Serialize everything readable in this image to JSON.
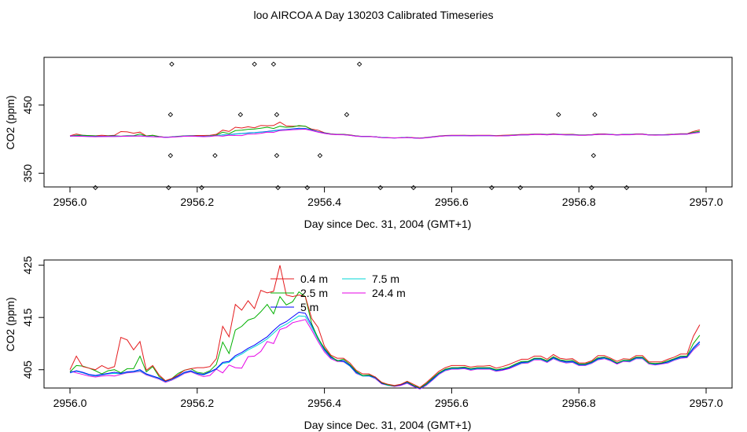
{
  "figure": {
    "title": "loo AIRCOA A  Day 130203  Calibrated Timeseries"
  },
  "chart_data": [
    {
      "type": "scatter+line",
      "xlabel": "Day since Dec. 31, 2004 (GMT+1)",
      "ylabel": "CO2 (ppm)",
      "xlim": [
        2956.0,
        2957.0
      ],
      "ylim": [
        330,
        520
      ],
      "xticks": [
        2956.0,
        2956.2,
        2956.4,
        2956.6,
        2956.8,
        2957.0
      ],
      "xtick_labels": [
        "2956.0",
        "2956.2",
        "2956.4",
        "2956.6",
        "2956.8",
        "2957.0"
      ],
      "yticks": [
        350,
        450
      ],
      "ytick_labels": [
        "350",
        "450"
      ],
      "grid": false,
      "raw_points": [
        {
          "x": 2956.16,
          "y": 510
        },
        {
          "x": 2956.29,
          "y": 510
        },
        {
          "x": 2956.32,
          "y": 510
        },
        {
          "x": 2956.455,
          "y": 510
        },
        {
          "x": 2956.158,
          "y": 436
        },
        {
          "x": 2956.268,
          "y": 436
        },
        {
          "x": 2956.325,
          "y": 436
        },
        {
          "x": 2956.435,
          "y": 436
        },
        {
          "x": 2956.768,
          "y": 436
        },
        {
          "x": 2956.825,
          "y": 436
        },
        {
          "x": 2956.158,
          "y": 376
        },
        {
          "x": 2956.228,
          "y": 376
        },
        {
          "x": 2956.325,
          "y": 376
        },
        {
          "x": 2956.393,
          "y": 376
        },
        {
          "x": 2956.823,
          "y": 376
        },
        {
          "x": 2956.04,
          "y": 329
        },
        {
          "x": 2956.155,
          "y": 329
        },
        {
          "x": 2956.207,
          "y": 329
        },
        {
          "x": 2956.327,
          "y": 329
        },
        {
          "x": 2956.373,
          "y": 329
        },
        {
          "x": 2956.488,
          "y": 329
        },
        {
          "x": 2956.54,
          "y": 329
        },
        {
          "x": 2956.663,
          "y": 329
        },
        {
          "x": 2956.708,
          "y": 329
        },
        {
          "x": 2956.82,
          "y": 329
        },
        {
          "x": 2956.875,
          "y": 329
        }
      ],
      "series": [
        {
          "name": "0.4 m",
          "color": "#e41a1c"
        },
        {
          "name": "2.5 m",
          "color": "#00b000"
        },
        {
          "name": "5 m",
          "color": "#0000ff"
        },
        {
          "name": "7.5 m",
          "color": "#00d7d7"
        },
        {
          "name": "24.4 m",
          "color": "#e600e6"
        }
      ]
    },
    {
      "type": "line",
      "xlabel": "Day since Dec. 31, 2004 (GMT+1)",
      "ylabel": "CO2 (ppm)",
      "xlim": [
        2956.0,
        2957.0
      ],
      "ylim": [
        401.5,
        426
      ],
      "xticks": [
        2956.0,
        2956.2,
        2956.4,
        2956.6,
        2956.8,
        2957.0
      ],
      "xtick_labels": [
        "2956.0",
        "2956.2",
        "2956.4",
        "2956.6",
        "2956.8",
        "2957.0"
      ],
      "yticks": [
        405,
        415,
        425
      ],
      "ytick_labels": [
        "405",
        "415",
        "425"
      ],
      "grid": false,
      "legend": {
        "placement": "top-left",
        "columns": 2
      },
      "x": [
        2956.0,
        2956.01,
        2956.02,
        2956.03,
        2956.04,
        2956.05,
        2956.06,
        2956.07,
        2956.08,
        2956.09,
        2956.1,
        2956.11,
        2956.12,
        2956.13,
        2956.14,
        2956.15,
        2956.16,
        2956.17,
        2956.18,
        2956.19,
        2956.2,
        2956.21,
        2956.22,
        2956.23,
        2956.24,
        2956.25,
        2956.26,
        2956.27,
        2956.28,
        2956.29,
        2956.3,
        2956.31,
        2956.32,
        2956.33,
        2956.34,
        2956.35,
        2956.36,
        2956.37,
        2956.38,
        2956.39,
        2956.4,
        2956.41,
        2956.42,
        2956.43,
        2956.44,
        2956.45,
        2956.46,
        2956.47,
        2956.48,
        2956.49,
        2956.5,
        2956.51,
        2956.52,
        2956.53,
        2956.54,
        2956.55,
        2956.56,
        2956.57,
        2956.58,
        2956.59,
        2956.6,
        2956.61,
        2956.62,
        2956.63,
        2956.64,
        2956.65,
        2956.66,
        2956.67,
        2956.68,
        2956.69,
        2956.7,
        2956.71,
        2956.72,
        2956.73,
        2956.74,
        2956.75,
        2956.76,
        2956.77,
        2956.78,
        2956.79,
        2956.8,
        2956.81,
        2956.82,
        2956.83,
        2956.84,
        2956.85,
        2956.86,
        2956.87,
        2956.88,
        2956.89,
        2956.9,
        2956.91,
        2956.92,
        2956.93,
        2956.94,
        2956.95,
        2956.96,
        2956.97,
        2956.98,
        2956.99
      ],
      "series": [
        {
          "name": "0.4 m",
          "color": "#e41a1c",
          "values": [
            405.0,
            407.6,
            405.6,
            405.3,
            405.0,
            405.8,
            405.2,
            405.6,
            411.2,
            410.7,
            408.8,
            410.4,
            404.9,
            405.8,
            404.0,
            402.9,
            403.3,
            404.0,
            404.9,
            405.2,
            405.4,
            405.4,
            405.6,
            407.1,
            413.3,
            411.3,
            417.5,
            416.4,
            418.2,
            416.7,
            420.2,
            419.7,
            420.0,
            425.0,
            419.3,
            419.0,
            419.3,
            419.0,
            414.8,
            413.1,
            409.5,
            407.8,
            407.2,
            407.2,
            406.3,
            404.9,
            404.2,
            404.2,
            403.6,
            402.6,
            402.2,
            402.0,
            402.2,
            402.8,
            402.2,
            401.6,
            402.5,
            403.6,
            404.7,
            405.4,
            405.8,
            405.8,
            405.8,
            405.5,
            405.7,
            405.7,
            405.8,
            405.3,
            405.6,
            406.0,
            406.5,
            407.0,
            407.0,
            407.6,
            407.6,
            407.0,
            407.9,
            407.2,
            407.0,
            407.1,
            406.3,
            406.3,
            406.7,
            407.7,
            407.7,
            407.2,
            406.6,
            407.1,
            407.0,
            407.7,
            407.7,
            406.5,
            406.5,
            406.5,
            407.0,
            407.4,
            408.0,
            408.0,
            411.4,
            413.6
          ]
        },
        {
          "name": "2.5 m",
          "color": "#00b000",
          "values": [
            404.6,
            405.8,
            405.7,
            405.3,
            404.8,
            404.2,
            404.8,
            405.0,
            404.4,
            405.2,
            405.2,
            407.6,
            404.6,
            405.6,
            403.7,
            402.9,
            403.3,
            404.3,
            404.9,
            405.2,
            404.5,
            404.3,
            404.8,
            406.0,
            410.3,
            408.1,
            412.6,
            413.3,
            414.5,
            414.9,
            416.1,
            417.5,
            415.7,
            419.0,
            417.4,
            418.0,
            419.9,
            419.0,
            413.8,
            411.0,
            409.1,
            407.6,
            406.7,
            407.0,
            406.0,
            404.7,
            403.9,
            404.0,
            403.6,
            402.5,
            402.1,
            401.9,
            402.2,
            402.7,
            402.0,
            401.5,
            402.3,
            403.4,
            404.4,
            405.1,
            405.4,
            405.4,
            405.5,
            405.2,
            405.4,
            405.4,
            405.4,
            405.0,
            405.2,
            405.5,
            406.1,
            406.6,
            406.6,
            407.2,
            407.2,
            406.7,
            407.5,
            406.9,
            406.7,
            406.8,
            406.1,
            406.1,
            406.5,
            407.3,
            407.4,
            407.0,
            406.3,
            406.8,
            406.8,
            407.4,
            407.4,
            406.3,
            406.2,
            406.3,
            406.7,
            407.1,
            407.6,
            407.6,
            410.0,
            411.6
          ]
        },
        {
          "name": "5 m",
          "color": "#0000ff",
          "values": [
            404.4,
            404.8,
            404.5,
            404.1,
            403.9,
            404.1,
            404.3,
            404.5,
            404.3,
            404.6,
            404.7,
            405.0,
            404.2,
            403.8,
            403.4,
            402.8,
            403.2,
            403.8,
            404.5,
            404.8,
            404.3,
            404.1,
            404.6,
            405.2,
            406.4,
            406.6,
            407.7,
            408.3,
            409.1,
            409.7,
            410.5,
            411.3,
            412.5,
            413.6,
            414.2,
            415.1,
            416.0,
            415.8,
            413.5,
            411.1,
            408.9,
            407.4,
            406.8,
            406.7,
            405.8,
            404.5,
            403.9,
            403.9,
            403.5,
            402.4,
            402.1,
            401.9,
            402.1,
            402.6,
            401.9,
            401.4,
            402.2,
            403.2,
            404.3,
            405.0,
            405.3,
            405.3,
            405.4,
            405.1,
            405.3,
            405.3,
            405.3,
            404.9,
            405.0,
            405.3,
            405.9,
            406.4,
            406.5,
            407.1,
            407.1,
            406.6,
            407.3,
            406.8,
            406.5,
            406.6,
            406.0,
            406.0,
            406.4,
            407.1,
            407.3,
            406.9,
            406.2,
            406.8,
            406.7,
            407.3,
            407.3,
            406.3,
            406.1,
            406.2,
            406.5,
            407.0,
            407.4,
            407.5,
            409.2,
            410.4
          ]
        },
        {
          "name": "7.5 m",
          "color": "#00d7d7",
          "values": [
            404.6,
            404.7,
            404.4,
            404.0,
            403.8,
            404.0,
            404.2,
            404.3,
            404.2,
            404.5,
            404.6,
            404.8,
            404.1,
            403.7,
            403.3,
            402.7,
            403.1,
            403.7,
            404.4,
            404.7,
            404.2,
            404.0,
            404.5,
            405.1,
            406.2,
            406.4,
            407.4,
            408.0,
            408.8,
            409.4,
            410.1,
            410.9,
            412.0,
            413.1,
            413.7,
            414.5,
            415.3,
            415.2,
            413.1,
            410.8,
            408.7,
            407.3,
            406.7,
            406.6,
            405.7,
            404.4,
            403.8,
            403.8,
            403.4,
            402.4,
            402.0,
            401.9,
            402.1,
            402.5,
            401.9,
            401.4,
            402.1,
            403.1,
            404.2,
            404.9,
            405.2,
            405.2,
            405.3,
            405.0,
            405.2,
            405.2,
            405.2,
            404.8,
            405.0,
            405.3,
            405.8,
            406.3,
            406.4,
            407.0,
            407.0,
            406.5,
            407.2,
            406.7,
            406.4,
            406.5,
            405.9,
            405.9,
            406.3,
            407.0,
            407.2,
            406.8,
            406.2,
            406.7,
            406.6,
            407.2,
            407.2,
            406.2,
            406.0,
            406.2,
            406.4,
            406.9,
            407.3,
            407.4,
            409.0,
            410.2
          ]
        },
        {
          "name": "24.4 m",
          "color": "#e600e6",
          "values": [
            404.8,
            404.4,
            404.1,
            403.8,
            403.6,
            403.8,
            403.9,
            403.8,
            404.1,
            404.4,
            404.5,
            404.7,
            404.0,
            403.6,
            403.2,
            402.6,
            403.0,
            403.6,
            404.3,
            404.6,
            404.1,
            403.7,
            403.9,
            405.1,
            404.4,
            405.9,
            405.4,
            405.3,
            407.5,
            407.6,
            408.5,
            410.4,
            410.0,
            412.7,
            413.1,
            414.0,
            414.3,
            414.6,
            412.6,
            410.4,
            408.4,
            407.1,
            406.6,
            406.5,
            405.7,
            404.3,
            403.8,
            403.8,
            403.3,
            402.3,
            402.0,
            401.8,
            402.0,
            402.4,
            401.8,
            401.3,
            402.0,
            403.0,
            404.1,
            404.8,
            405.1,
            405.1,
            405.2,
            404.9,
            405.1,
            405.1,
            405.1,
            404.7,
            404.9,
            405.2,
            405.7,
            406.2,
            406.3,
            406.9,
            406.9,
            406.4,
            407.1,
            406.6,
            406.3,
            406.4,
            405.8,
            405.8,
            406.2,
            406.9,
            407.1,
            406.7,
            406.1,
            406.6,
            406.5,
            407.1,
            407.1,
            406.1,
            405.9,
            406.1,
            406.3,
            406.8,
            407.2,
            407.3,
            408.8,
            409.9
          ]
        }
      ]
    }
  ]
}
